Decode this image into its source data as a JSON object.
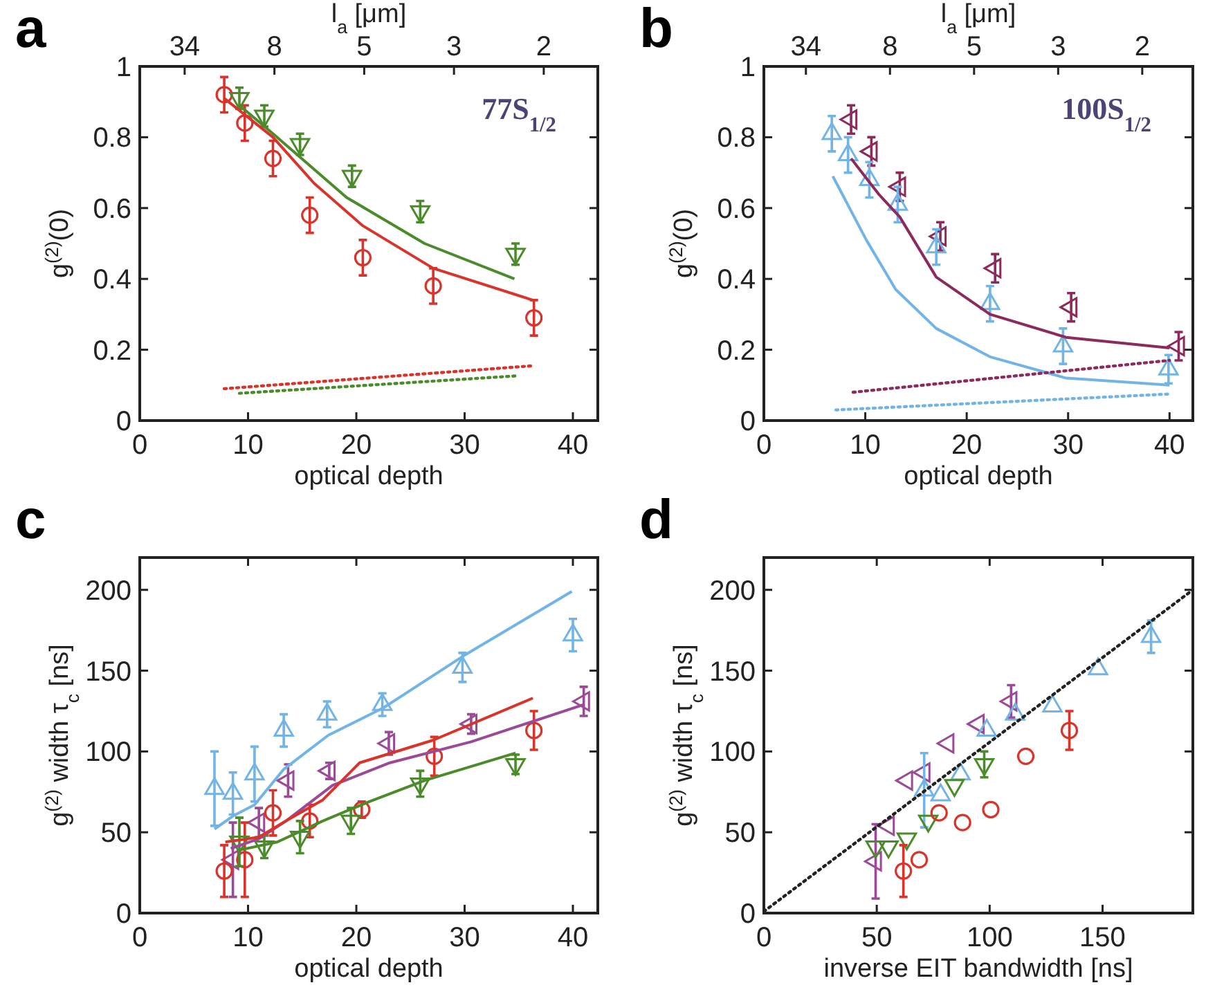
{
  "chart_data": [
    {
      "type": "scatter",
      "title": "a",
      "xlabel": "optical depth",
      "ylabel": "g$^{(2)}$(0)",
      "x2label": "l$_{a}$ [μm]",
      "xlim": [
        0,
        42.3
      ],
      "ylim": [
        0,
        1
      ],
      "xticks": [
        0,
        10,
        20,
        30,
        40
      ],
      "yticks": [
        0,
        0.2,
        0.4,
        0.6,
        0.8,
        1
      ],
      "annotations": [
        "77S$_{1/2}$",
        "34",
        "8",
        "5",
        "3",
        "2"
      ],
      "series": [
        {
          "type": "scatter",
          "color": "#d9342b",
          "marker": "circle",
          "x": [
            7.8,
            9.7,
            12.3,
            15.7,
            20.6,
            27.1,
            36.4
          ],
          "values": [
            0.92,
            0.84,
            0.74,
            0.58,
            0.46,
            0.38,
            0.29
          ],
          "errors": [
            0.05,
            0.05,
            0.05,
            0.05,
            0.05,
            0.05,
            0.05
          ]
        },
        {
          "type": "scatter",
          "color": "#4b8b2b",
          "marker": "triangle-down",
          "x": [
            9.2,
            11.5,
            14.8,
            19.6,
            25.9,
            34.7
          ],
          "values": [
            0.91,
            0.86,
            0.78,
            0.69,
            0.59,
            0.47
          ],
          "errors": [
            0.03,
            0.03,
            0.03,
            0.03,
            0.03,
            0.03
          ]
        },
        {
          "type": "line",
          "color": "#d9342b",
          "line_style": "solid",
          "x": [
            7.8,
            12.3,
            16.1,
            20.6,
            27.1,
            36.3
          ],
          "values": [
            0.91,
            0.8,
            0.67,
            0.55,
            0.43,
            0.34
          ]
        },
        {
          "type": "line",
          "color": "#4b8b2b",
          "line_style": "solid",
          "x": [
            9.2,
            12.3,
            19.1,
            26.3,
            34.6
          ],
          "values": [
            0.89,
            0.81,
            0.63,
            0.5,
            0.4
          ]
        },
        {
          "type": "line",
          "color": "#d9342b",
          "line_style": "dotted",
          "x": [
            7.8,
            36.4
          ],
          "values": [
            0.09,
            0.155
          ]
        },
        {
          "type": "line",
          "color": "#4b8b2b",
          "line_style": "dotted",
          "x": [
            9.2,
            34.7
          ],
          "values": [
            0.077,
            0.126
          ]
        }
      ]
    },
    {
      "type": "scatter",
      "title": "b",
      "xlabel": "optical depth",
      "ylabel": "g$^{(2)}$(0)",
      "x2label": "l$_{a}$ [μm]",
      "xlim": [
        0,
        42.3
      ],
      "ylim": [
        0,
        1
      ],
      "xticks": [
        0,
        10,
        20,
        30,
        40
      ],
      "yticks": [
        0,
        0.2,
        0.4,
        0.6,
        0.8,
        1
      ],
      "annotations": [
        "100S$_{1/2}$",
        "34",
        "8",
        "5",
        "3",
        "2"
      ],
      "series": [
        {
          "type": "scatter",
          "color": "#8c2a5c",
          "marker": "triangle-left",
          "x": [
            8.6,
            10.6,
            13.4,
            17.4,
            22.8,
            30.3,
            40.9
          ],
          "values": [
            0.85,
            0.76,
            0.66,
            0.52,
            0.43,
            0.32,
            0.21
          ],
          "errors": [
            0.04,
            0.04,
            0.04,
            0.04,
            0.04,
            0.04,
            0.04
          ]
        },
        {
          "type": "scatter",
          "color": "#72b4e6",
          "marker": "triangle",
          "x": [
            6.7,
            8.3,
            10.4,
            13.2,
            17.0,
            22.3,
            29.5,
            39.9
          ],
          "values": [
            0.81,
            0.75,
            0.68,
            0.61,
            0.49,
            0.33,
            0.21,
            0.145
          ],
          "errors": [
            0.05,
            0.05,
            0.05,
            0.05,
            0.05,
            0.05,
            0.05,
            0.04
          ]
        },
        {
          "type": "line",
          "color": "#8c2a5c",
          "line_style": "solid",
          "x": [
            8.6,
            11.3,
            13.4,
            17.0,
            22.3,
            29.8,
            40
          ],
          "values": [
            0.74,
            0.64,
            0.575,
            0.405,
            0.3,
            0.235,
            0.205
          ]
        },
        {
          "type": "line",
          "color": "#72b4e6",
          "line_style": "solid",
          "x": [
            6.8,
            10.1,
            13.0,
            17.0,
            22.3,
            29.8,
            40
          ],
          "values": [
            0.69,
            0.51,
            0.37,
            0.26,
            0.18,
            0.12,
            0.1
          ]
        },
        {
          "type": "line",
          "color": "#8c2a5c",
          "line_style": "dotted",
          "x": [
            8.8,
            40
          ],
          "values": [
            0.08,
            0.17
          ]
        },
        {
          "type": "line",
          "color": "#72b4e6",
          "line_style": "dotted",
          "x": [
            7.1,
            40
          ],
          "values": [
            0.03,
            0.075
          ]
        }
      ]
    },
    {
      "type": "scatter",
      "title": "c",
      "xlabel": "optical depth",
      "ylabel": "g$^{(2)}$ width τ$_{c}$ [ns]",
      "xlim": [
        0,
        42.3
      ],
      "ylim": [
        0,
        220
      ],
      "xticks": [
        0,
        10,
        20,
        30,
        40
      ],
      "yticks": [
        0,
        50,
        100,
        150,
        200
      ],
      "series": [
        {
          "type": "scatter",
          "color": "#72b4e6",
          "marker": "triangle",
          "x": [
            6.9,
            8.6,
            10.6,
            13.3,
            17.3,
            22.4,
            29.8,
            40.0
          ],
          "values": [
            77,
            74,
            86,
            113,
            123,
            129,
            152,
            172
          ],
          "errors": [
            23,
            13,
            17,
            10,
            8,
            7,
            9,
            10
          ]
        },
        {
          "type": "scatter",
          "color": "#9a4a96",
          "marker": "triangle-left",
          "x": [
            8.6,
            11.0,
            13.7,
            17.5,
            23.0,
            30.6,
            41.0
          ],
          "values": [
            33,
            56,
            82,
            88,
            105,
            117,
            131
          ],
          "errors": [
            23,
            9,
            10,
            5,
            7,
            6,
            9
          ]
        },
        {
          "type": "scatter",
          "color": "#d9342b",
          "marker": "circle",
          "x": [
            7.8,
            9.7,
            12.3,
            15.7,
            20.5,
            27.2,
            36.4
          ],
          "values": [
            26,
            33,
            62,
            57,
            64,
            97,
            113
          ],
          "errors": [
            16,
            23,
            14,
            10,
            5,
            12,
            12
          ]
        },
        {
          "type": "scatter",
          "color": "#4b8b2b",
          "marker": "triangle-down",
          "x": [
            9.2,
            11.5,
            14.8,
            19.5,
            25.9,
            34.7
          ],
          "values": [
            44,
            41,
            47,
            57,
            80,
            92
          ],
          "errors": [
            15,
            7,
            10,
            8,
            8,
            6
          ]
        },
        {
          "type": "line",
          "color": "#72b4e6",
          "line_style": "solid",
          "x": [
            6.9,
            8.6,
            10.6,
            13.3,
            17.4,
            22.5,
            30.1,
            39.9
          ],
          "values": [
            52,
            60,
            67,
            89,
            110,
            127,
            160,
            199
          ]
        },
        {
          "type": "line",
          "color": "#9a4a96",
          "line_style": "solid",
          "x": [
            8.4,
            11.0,
            13.5,
            17.8,
            23.1,
            30.6,
            41
          ],
          "values": [
            40,
            46,
            57,
            79,
            93,
            106,
            129
          ]
        },
        {
          "type": "line",
          "color": "#d9342b",
          "line_style": "solid",
          "x": [
            7.9,
            11,
            13.5,
            16.9,
            20.3,
            27.1,
            36.3
          ],
          "values": [
            44,
            47,
            57,
            70,
            93,
            107,
            133
          ]
        },
        {
          "type": "line",
          "color": "#4b8b2b",
          "line_style": "solid",
          "x": [
            9.2,
            12.7,
            16.9,
            21.2,
            26.3,
            34.7
          ],
          "values": [
            39,
            44,
            57,
            69,
            82,
            99
          ]
        }
      ]
    },
    {
      "type": "scatter",
      "title": "d",
      "xlabel": "inverse EIT bandwidth [ns]",
      "ylabel": "g$^{(2)}$ width τ$_{c}$ [ns]",
      "xlim": [
        0,
        190
      ],
      "ylim": [
        0,
        220
      ],
      "xticks": [
        0,
        50,
        100,
        150
      ],
      "yticks": [
        0,
        50,
        100,
        150,
        200
      ],
      "series": [
        {
          "type": "scatter",
          "color": "#9a4a96",
          "marker": "triangle-left",
          "x": [
            49.5,
            55.2,
            63.3,
            71,
            81.6,
            95,
            109.5
          ],
          "values": [
            32,
            54,
            82,
            87,
            105,
            117,
            131
          ],
          "errors": [
            23,
            null,
            null,
            null,
            null,
            null,
            10
          ]
        },
        {
          "type": "scatter",
          "color": "#72b4e6",
          "marker": "triangle",
          "x": [
            71,
            78.3,
            87.1,
            98.7,
            111.3,
            127.8,
            148,
            171.5
          ],
          "values": [
            76,
            73,
            86,
            113,
            123,
            128,
            151,
            171
          ],
          "errors": [
            23,
            null,
            null,
            null,
            null,
            null,
            null,
            10
          ]
        },
        {
          "type": "scatter",
          "color": "#4b8b2b",
          "marker": "triangle-down",
          "x": [
            49.5,
            55.2,
            63.3,
            72.8,
            84.4,
            97.6
          ],
          "values": [
            41,
            41,
            46,
            57,
            79,
            92
          ],
          "errors": [
            null,
            null,
            null,
            null,
            null,
            8
          ]
        },
        {
          "type": "scatter",
          "color": "#d9342b",
          "marker": "circle",
          "x": [
            61.8,
            68.8,
            77.6,
            88,
            100.5,
            116,
            135.3
          ],
          "values": [
            26,
            33,
            62,
            56,
            64,
            97,
            113
          ],
          "errors": [
            16,
            null,
            null,
            null,
            null,
            null,
            12
          ]
        },
        {
          "type": "line",
          "color": "#222222",
          "line_style": "dotted",
          "x": [
            0,
            190
          ],
          "values": [
            1,
            200
          ]
        }
      ]
    }
  ]
}
